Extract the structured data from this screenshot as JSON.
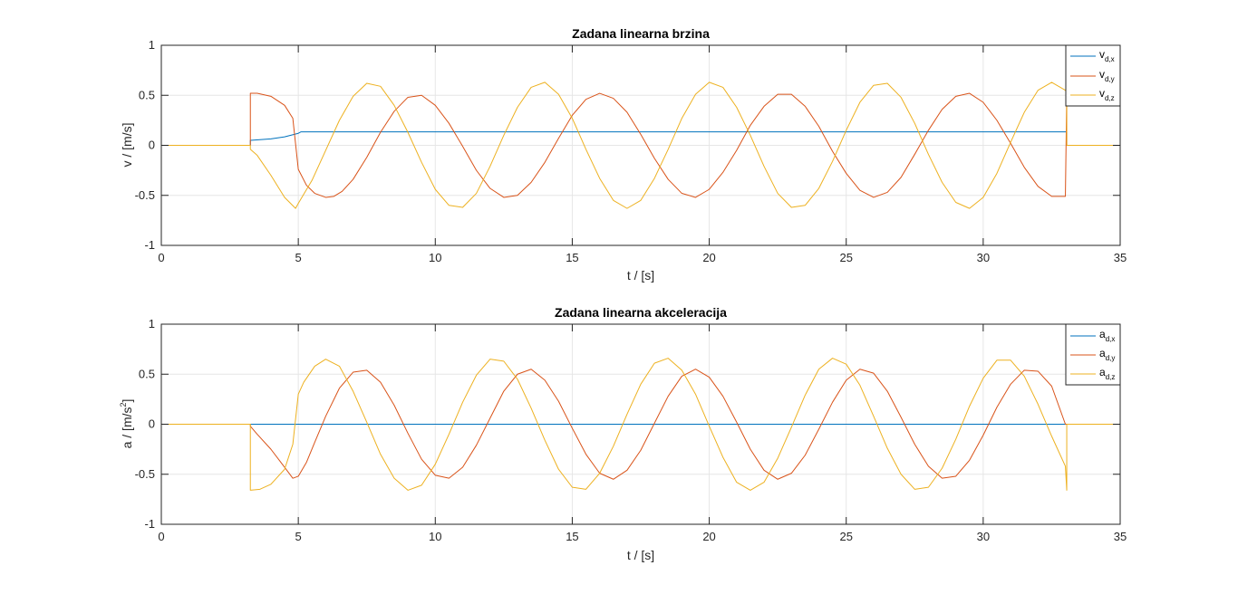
{
  "colors": {
    "series1": "#0072BD",
    "series2": "#D95319",
    "series3": "#EDB120",
    "grid": "#e6e6e6",
    "axis": "#262626"
  },
  "chart_data": [
    {
      "type": "line",
      "title": "Zadana linearna brzina",
      "xlabel": "t / [s]",
      "ylabel": "v / [m/s]",
      "xlim": [
        0,
        35
      ],
      "ylim": [
        -1,
        1
      ],
      "xticks": [
        0,
        5,
        10,
        15,
        20,
        25,
        30,
        35
      ],
      "yticks": [
        -1,
        -0.5,
        0,
        0.5,
        1
      ],
      "grid": "vertical",
      "legend": {
        "position": "top-right",
        "entries": [
          {
            "base": "v",
            "sub": "d,x"
          },
          {
            "base": "v",
            "sub": "d,y"
          },
          {
            "base": "v",
            "sub": "d,z"
          }
        ]
      },
      "series": [
        {
          "name": "vd,x",
          "x": [
            0,
            3.25,
            3.25,
            4.0,
            4.5,
            5.0,
            5.1,
            33.05,
            33.05,
            35
          ],
          "y": [
            0,
            0,
            0.05,
            0.065,
            0.085,
            0.12,
            0.135,
            0.135,
            0,
            0
          ]
        },
        {
          "name": "vd,y",
          "x": [
            0,
            3.25,
            3.25,
            3.5,
            4.0,
            4.5,
            4.8,
            5.0,
            5.3,
            5.6,
            6.0,
            6.3,
            6.6,
            7.0,
            7.5,
            8.0,
            8.5,
            9.0,
            9.5,
            10.0,
            10.5,
            11.0,
            11.5,
            12.0,
            12.5,
            13.0,
            13.5,
            14.0,
            14.5,
            15.0,
            15.5,
            16.0,
            16.5,
            17.0,
            17.5,
            18.0,
            18.5,
            19.0,
            19.5,
            20.0,
            20.5,
            21.0,
            21.5,
            22.0,
            22.5,
            23.0,
            23.5,
            24.0,
            24.5,
            25.0,
            25.5,
            26.0,
            26.5,
            27.0,
            27.5,
            28.0,
            28.5,
            29.0,
            29.5,
            30.0,
            30.5,
            31.0,
            31.5,
            32.0,
            32.5,
            33.0,
            33.05,
            33.05,
            35
          ],
          "y": [
            0,
            0,
            0.52,
            0.52,
            0.49,
            0.4,
            0.27,
            -0.24,
            -0.4,
            -0.48,
            -0.52,
            -0.51,
            -0.46,
            -0.34,
            -0.12,
            0.13,
            0.34,
            0.48,
            0.5,
            0.4,
            0.22,
            -0.01,
            -0.25,
            -0.43,
            -0.52,
            -0.5,
            -0.37,
            -0.17,
            0.07,
            0.3,
            0.46,
            0.52,
            0.47,
            0.33,
            0.11,
            -0.13,
            -0.34,
            -0.48,
            -0.52,
            -0.44,
            -0.27,
            -0.05,
            0.2,
            0.39,
            0.51,
            0.51,
            0.39,
            0.19,
            -0.06,
            -0.28,
            -0.45,
            -0.52,
            -0.47,
            -0.32,
            -0.09,
            0.15,
            0.36,
            0.49,
            0.52,
            0.43,
            0.25,
            0.02,
            -0.22,
            -0.41,
            -0.51,
            -0.51,
            0.52,
            0,
            0
          ]
        },
        {
          "name": "vd,z",
          "x": [
            0,
            3.25,
            3.25,
            3.5,
            4.0,
            4.5,
            4.9,
            5.0,
            5.5,
            6.0,
            6.5,
            7.0,
            7.5,
            8.0,
            8.5,
            9.0,
            9.5,
            10.0,
            10.5,
            11.0,
            11.5,
            12.0,
            12.5,
            13.0,
            13.5,
            14.0,
            14.5,
            15.0,
            15.5,
            16.0,
            16.5,
            17.0,
            17.5,
            18.0,
            18.5,
            19.0,
            19.5,
            20.0,
            20.5,
            21.0,
            21.5,
            22.0,
            22.5,
            23.0,
            23.5,
            24.0,
            24.5,
            25.0,
            25.5,
            26.0,
            26.5,
            27.0,
            27.5,
            28.0,
            28.5,
            29.0,
            29.5,
            30.0,
            30.5,
            31.0,
            31.5,
            32.0,
            32.5,
            33.0,
            33.05,
            33.05,
            35
          ],
          "y": [
            0,
            0,
            -0.04,
            -0.1,
            -0.3,
            -0.52,
            -0.63,
            -0.58,
            -0.35,
            -0.05,
            0.25,
            0.49,
            0.62,
            0.59,
            0.4,
            0.13,
            -0.17,
            -0.44,
            -0.6,
            -0.62,
            -0.48,
            -0.21,
            0.1,
            0.38,
            0.58,
            0.63,
            0.51,
            0.27,
            -0.04,
            -0.33,
            -0.55,
            -0.63,
            -0.55,
            -0.33,
            -0.04,
            0.27,
            0.51,
            0.63,
            0.58,
            0.38,
            0.1,
            -0.21,
            -0.48,
            -0.62,
            -0.6,
            -0.43,
            -0.16,
            0.15,
            0.43,
            0.6,
            0.62,
            0.48,
            0.22,
            -0.09,
            -0.37,
            -0.57,
            -0.63,
            -0.52,
            -0.28,
            0.03,
            0.33,
            0.55,
            0.63,
            0.55,
            0.52,
            0,
            0
          ]
        }
      ]
    },
    {
      "type": "line",
      "title": "Zadana linearna akceleracija",
      "xlabel": "t / [s]",
      "ylabel": "a / [m/s",
      "ylabel_sup": "2",
      "ylabel_end": "]",
      "xlim": [
        0,
        35
      ],
      "ylim": [
        -1,
        1
      ],
      "xticks": [
        0,
        5,
        10,
        15,
        20,
        25,
        30,
        35
      ],
      "yticks": [
        -1,
        -0.5,
        0,
        0.5,
        1
      ],
      "grid": "vertical",
      "legend": {
        "position": "top-right",
        "entries": [
          {
            "base": "a",
            "sub": "d,x"
          },
          {
            "base": "a",
            "sub": "d,y"
          },
          {
            "base": "a",
            "sub": "d,z"
          }
        ]
      },
      "series": [
        {
          "name": "ad,x",
          "x": [
            0,
            35
          ],
          "y": [
            0,
            0
          ]
        },
        {
          "name": "ad,y",
          "x": [
            0,
            3.25,
            3.25,
            3.5,
            4.0,
            4.5,
            4.8,
            5.0,
            5.3,
            5.6,
            6.0,
            6.5,
            7.0,
            7.5,
            8.0,
            8.5,
            9.0,
            9.5,
            10.0,
            10.5,
            11.0,
            11.5,
            12.0,
            12.5,
            13.0,
            13.5,
            14.0,
            14.5,
            15.0,
            15.5,
            16.0,
            16.5,
            17.0,
            17.5,
            18.0,
            18.5,
            19.0,
            19.5,
            20.0,
            20.5,
            21.0,
            21.5,
            22.0,
            22.5,
            23.0,
            23.5,
            24.0,
            24.5,
            25.0,
            25.5,
            26.0,
            26.5,
            27.0,
            27.5,
            28.0,
            28.5,
            29.0,
            29.5,
            30.0,
            30.5,
            31.0,
            31.5,
            32.0,
            32.5,
            33.0,
            33.05,
            35
          ],
          "y": [
            0,
            0,
            -0.02,
            -0.1,
            -0.25,
            -0.43,
            -0.54,
            -0.52,
            -0.38,
            -0.18,
            0.08,
            0.36,
            0.52,
            0.54,
            0.42,
            0.19,
            -0.09,
            -0.35,
            -0.51,
            -0.54,
            -0.43,
            -0.21,
            0.06,
            0.33,
            0.5,
            0.55,
            0.44,
            0.23,
            -0.04,
            -0.3,
            -0.49,
            -0.55,
            -0.46,
            -0.26,
            0.01,
            0.28,
            0.48,
            0.55,
            0.47,
            0.28,
            0.02,
            -0.25,
            -0.46,
            -0.55,
            -0.49,
            -0.31,
            -0.05,
            0.22,
            0.44,
            0.55,
            0.51,
            0.33,
            0.07,
            -0.2,
            -0.42,
            -0.54,
            -0.52,
            -0.36,
            -0.11,
            0.17,
            0.4,
            0.54,
            0.53,
            0.38,
            0.0,
            0,
            0
          ]
        },
        {
          "name": "ad,z",
          "x": [
            0,
            3.25,
            3.25,
            3.6,
            4.0,
            4.5,
            4.8,
            5.0,
            5.2,
            5.6,
            6.0,
            6.5,
            7.0,
            7.5,
            8.0,
            8.5,
            9.0,
            9.5,
            10.0,
            10.5,
            11.0,
            11.5,
            12.0,
            12.5,
            13.0,
            13.5,
            14.0,
            14.5,
            15.0,
            15.5,
            16.0,
            16.5,
            17.0,
            17.5,
            18.0,
            18.5,
            19.0,
            19.5,
            20.0,
            20.5,
            21.0,
            21.5,
            22.0,
            22.5,
            23.0,
            23.5,
            24.0,
            24.5,
            25.0,
            25.5,
            26.0,
            26.5,
            27.0,
            27.5,
            28.0,
            28.5,
            29.0,
            29.5,
            30.0,
            30.5,
            31.0,
            31.5,
            32.0,
            32.5,
            33.0,
            33.05,
            33.05,
            35
          ],
          "y": [
            0,
            0,
            -0.66,
            -0.65,
            -0.6,
            -0.45,
            -0.2,
            0.3,
            0.42,
            0.58,
            0.65,
            0.58,
            0.33,
            0.02,
            -0.3,
            -0.54,
            -0.66,
            -0.61,
            -0.4,
            -0.1,
            0.22,
            0.49,
            0.65,
            0.63,
            0.45,
            0.16,
            -0.16,
            -0.45,
            -0.63,
            -0.65,
            -0.49,
            -0.22,
            0.1,
            0.4,
            0.61,
            0.66,
            0.54,
            0.3,
            -0.02,
            -0.33,
            -0.58,
            -0.66,
            -0.58,
            -0.34,
            -0.03,
            0.29,
            0.55,
            0.66,
            0.6,
            0.39,
            0.08,
            -0.24,
            -0.5,
            -0.65,
            -0.63,
            -0.44,
            -0.15,
            0.18,
            0.46,
            0.64,
            0.64,
            0.48,
            0.2,
            -0.12,
            -0.42,
            -0.66,
            0,
            0
          ]
        }
      ]
    }
  ]
}
